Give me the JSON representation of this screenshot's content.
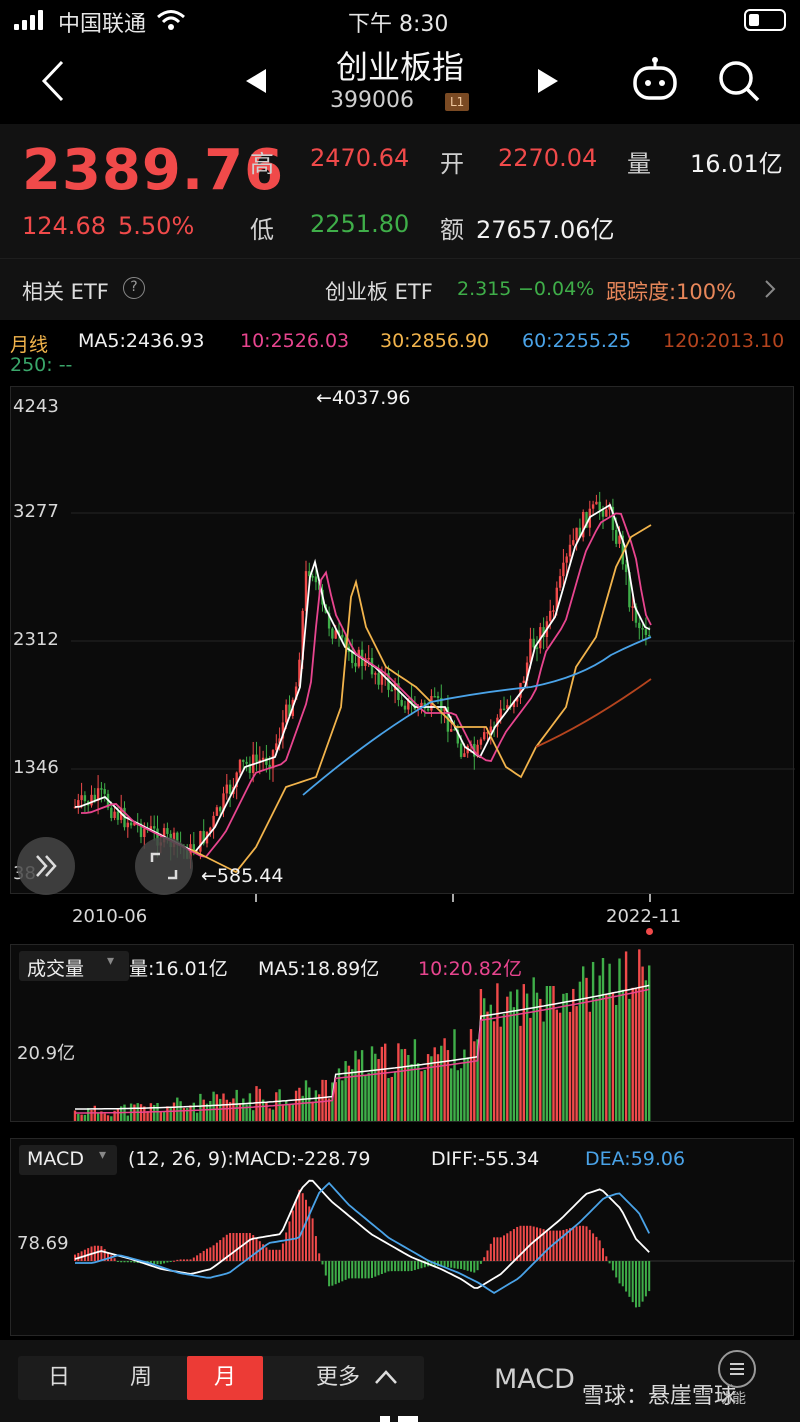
{
  "status_bar": {
    "carrier": "中国联通",
    "time": "下午 8:30"
  },
  "header": {
    "title": "创业板指",
    "code": "399006",
    "level_badge": "L1",
    "robot_icon": "robot-icon",
    "search_icon": "search-icon"
  },
  "quote": {
    "price": "2389.76",
    "change": "124.68",
    "change_pct": "5.50%",
    "high_label": "高",
    "high": "2470.64",
    "open_label": "开",
    "open": "2270.04",
    "volume_label": "量",
    "volume": "16.01亿",
    "low_label": "低",
    "low": "2251.80",
    "amount_label": "额",
    "amount": "27657.06亿"
  },
  "etf": {
    "label": "相关 ETF",
    "name": "创业板 ETF",
    "price": "2.315",
    "change_pct": "−0.04%",
    "tracking": "跟踪度:100%"
  },
  "ma_legend": {
    "period": "月线",
    "ma5": "MA5:2436.93",
    "ma10": "10:2526.03",
    "ma30": "30:2856.90",
    "ma60": "60:2255.25",
    "ma120": "120:2013.10",
    "ma250": "250: --"
  },
  "colors": {
    "up": "#f04a4a",
    "down": "#3fae49",
    "ma5": "#ffffff",
    "ma10": "#e8458f",
    "ma30": "#f2b44c",
    "ma60": "#4aa3e8",
    "ma120": "#b5441e"
  },
  "price_chart": {
    "y_ticks": [
      "4243",
      "3277",
      "2312",
      "1346",
      "38"
    ],
    "max_annotation": "←4037.96",
    "min_annotation": "←585.44",
    "x_start": "2010-06",
    "x_end": "2022-11"
  },
  "volume_panel": {
    "title": "成交量",
    "volume": "量:16.01亿",
    "ma5": "MA5:18.89亿",
    "ma10": "10:20.82亿",
    "y_tick": "20.9亿"
  },
  "macd_panel": {
    "title": "MACD",
    "params": "(12, 26, 9):MACD:-228.79",
    "diff": "DIFF:-55.34",
    "dea": "DEA:59.06",
    "y_tick": "78.69"
  },
  "bottom_bar": {
    "periods": [
      "日",
      "周",
      "月"
    ],
    "more": "更多",
    "indicator": "MACD",
    "watermark": "雪球：悬崖雪球",
    "menu_label": "功能"
  }
}
